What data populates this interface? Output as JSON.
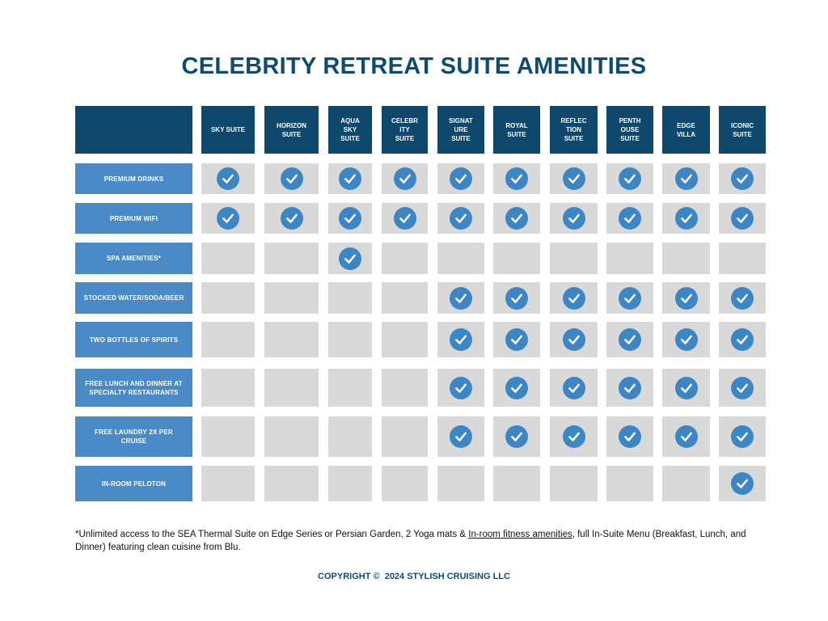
{
  "title": "CELEBRITY RETREAT SUITE AMENITIES",
  "columns": [
    "SKY SUITE",
    "HORIZON\nSUITE",
    "AQUA\nSKY\nSUITE",
    "CELEBR\nITY\nSUITE",
    "SIGNAT\nURE\nSUITE",
    "ROYAL\nSUITE",
    "REFLEC\nTION\nSUITE",
    "PENTH\nOUSE\nSUITE",
    "EDGE\nVILLA",
    "ICONIC\nSUITE"
  ],
  "rows": [
    {
      "label": "PREMIUM DRINKS",
      "checks": [
        true,
        true,
        true,
        true,
        true,
        true,
        true,
        true,
        true,
        true
      ]
    },
    {
      "label": "PREMIUM WIFI",
      "checks": [
        true,
        true,
        true,
        true,
        true,
        true,
        true,
        true,
        true,
        true
      ]
    },
    {
      "label": "SPA AMENITIES*",
      "checks": [
        false,
        false,
        true,
        false,
        false,
        false,
        false,
        false,
        false,
        false
      ]
    },
    {
      "label": "STOCKED WATER/SODA/BEER",
      "checks": [
        false,
        false,
        false,
        false,
        true,
        true,
        true,
        true,
        true,
        true
      ]
    },
    {
      "label": "TWO BOTTLES OF SPIRITS",
      "checks": [
        false,
        false,
        false,
        false,
        true,
        true,
        true,
        true,
        true,
        true
      ]
    },
    {
      "label": "FREE LUNCH AND DINNER AT SPECIALTY RESTAURANTS",
      "checks": [
        false,
        false,
        false,
        false,
        true,
        true,
        true,
        true,
        true,
        true
      ]
    },
    {
      "label": "FREE LAUNDRY 2X PER CRUISE",
      "checks": [
        false,
        false,
        false,
        false,
        true,
        true,
        true,
        true,
        true,
        true
      ]
    },
    {
      "label": "IN-ROOM PELOTON",
      "checks": [
        false,
        false,
        false,
        false,
        false,
        false,
        false,
        false,
        false,
        true
      ]
    }
  ],
  "footnote": {
    "before": "*Unlimited access to the SEA Thermal Suite on Edge Series or Persian Garden, 2 Yoga mats & ",
    "link": "In-room fitness amenities",
    "after": ", full In-Suite Menu (Breakfast, Lunch, and Dinner) featuring clean cuisine from Blu."
  },
  "copyright": "COPYRIGHT ©  2024 STYLISH CRUISING LLC",
  "colors": {
    "title": "#0f4b70",
    "header_bg": "#0e486d",
    "row_label_bg": "#4a8bc7",
    "cell_bg": "#d9d9d9",
    "check": "#3d86c6"
  },
  "icons": {
    "included": "check-circle-icon"
  }
}
